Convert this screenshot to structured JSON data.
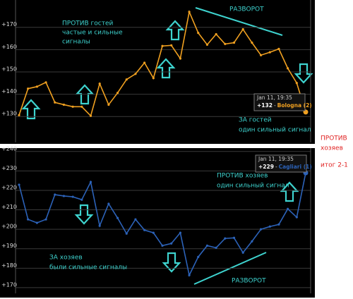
{
  "chart_data": [
    {
      "type": "line",
      "categories": [
        null,
        null,
        null,
        null,
        null,
        null,
        null,
        null,
        null,
        null,
        null,
        null,
        null,
        null,
        null,
        null,
        null,
        null,
        null,
        null,
        null,
        null,
        null,
        null,
        null,
        null,
        null,
        null,
        null,
        null,
        null,
        null,
        null
      ],
      "series": [
        {
          "name": "Bologna (2)",
          "color": "#f0a020",
          "values": [
            130.6,
            142.5,
            143.4,
            145.3,
            136.3,
            135.3,
            134.4,
            134.4,
            130.3,
            144.7,
            135.3,
            140.6,
            146.6,
            149.1,
            154.1,
            147.2,
            161.6,
            161.9,
            156,
            176.9,
            167.5,
            162.2,
            166.9,
            162.5,
            163.1,
            169.1,
            163.1,
            157.5,
            158.8,
            160.3,
            151.6,
            145,
            132
          ],
          "value_labels": [
            null,
            null,
            null,
            null,
            null,
            null,
            null,
            null,
            null,
            null,
            null,
            null,
            null,
            null,
            null,
            null,
            null,
            null,
            null,
            null,
            null,
            null,
            null,
            null,
            null,
            null,
            null,
            null,
            null,
            null,
            null,
            null,
            "+132"
          ]
        }
      ],
      "ylim": [
        119,
        181.6
      ],
      "yticks": [
        {
          "value": 130,
          "label": "+130"
        },
        {
          "value": 140,
          "label": "+140"
        },
        {
          "value": 150,
          "label": "+150"
        },
        {
          "value": 160,
          "label": "+160"
        },
        {
          "value": 170,
          "label": "+170"
        }
      ],
      "grid": true,
      "tooltip": "Jan 11, 19:35",
      "annotations": [
        "ПРОТИВ гостей",
        "частые и сильные",
        "сигналы",
        "РАЗВОРОТ",
        "ЗА гостей",
        "один сильный сигнал"
      ]
    },
    {
      "type": "line",
      "categories": [
        null,
        null,
        null,
        null,
        null,
        null,
        null,
        null,
        null,
        null,
        null,
        null,
        null,
        null,
        null,
        null,
        null,
        null,
        null,
        null,
        null,
        null,
        null,
        null,
        null,
        null,
        null,
        null,
        null,
        null,
        null,
        null,
        null
      ],
      "series": [
        {
          "name": "Cagliari (1)",
          "color": "#2c62b8",
          "values": [
            222.9,
            205.1,
            203.3,
            205.1,
            217.8,
            217.1,
            216.7,
            215.2,
            224.3,
            201.8,
            213.1,
            205.8,
            197.8,
            205.1,
            199.6,
            198.2,
            191.6,
            192.7,
            198.2,
            176.4,
            185.8,
            191.6,
            190.5,
            195.3,
            195.6,
            188,
            193.8,
            200,
            201.4,
            202.5,
            210.5,
            206.2,
            229
          ],
          "value_labels": [
            null,
            null,
            null,
            null,
            null,
            null,
            null,
            null,
            null,
            null,
            null,
            null,
            null,
            null,
            null,
            null,
            null,
            null,
            null,
            null,
            null,
            null,
            null,
            null,
            null,
            null,
            null,
            null,
            null,
            null,
            null,
            null,
            "+229"
          ]
        }
      ],
      "ylim": [
        167.8,
        241
      ],
      "yticks": [
        {
          "value": 170,
          "label": "+170"
        },
        {
          "value": 180,
          "label": "+180"
        },
        {
          "value": 190,
          "label": "+190"
        },
        {
          "value": 200,
          "label": "+200"
        },
        {
          "value": 210,
          "label": "+210"
        },
        {
          "value": 220,
          "label": "+220"
        },
        {
          "value": 230,
          "label": "+230"
        },
        {
          "value": 240,
          "label": "+240"
        }
      ],
      "grid": true,
      "tooltip": "Jan 11, 19:35",
      "annotations": [
        "ПРОТИВ хозяев",
        "один сильный сигнал",
        "ЗА хозяев",
        "были сильные сигналы",
        "РАЗВОРОТ"
      ]
    }
  ],
  "side_note": [
    "ПРОТИВ",
    "хозяев",
    "итог 2-1"
  ]
}
